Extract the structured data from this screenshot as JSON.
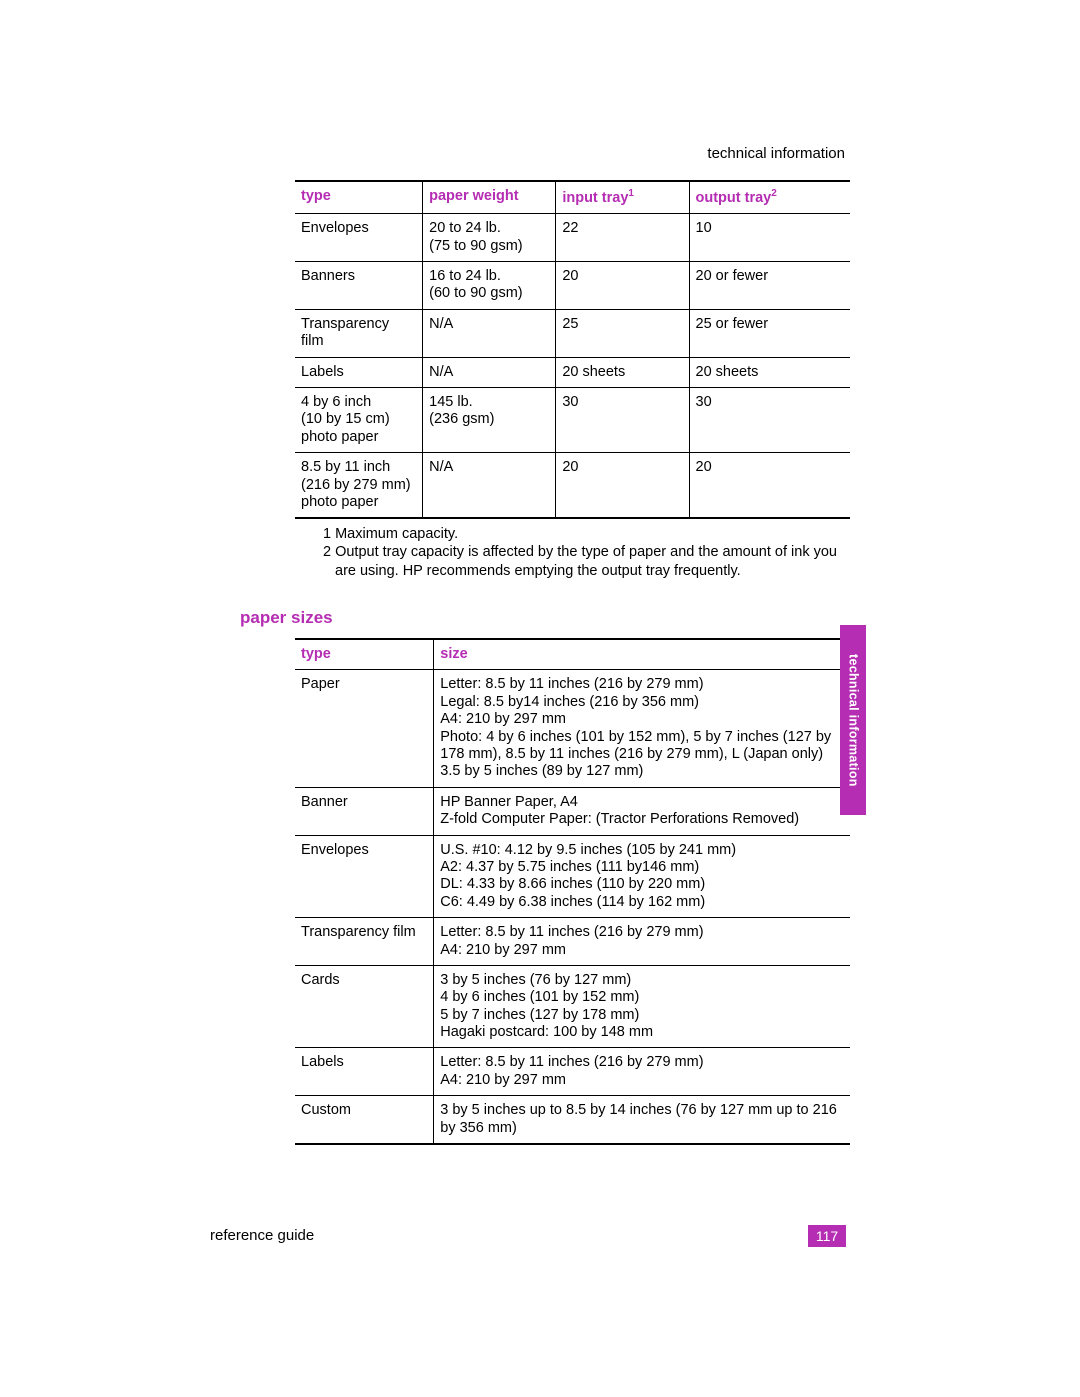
{
  "colors": {
    "accent": "#b52db3",
    "text": "#000000",
    "background": "#ffffff",
    "tab_text": "#ffffff"
  },
  "running_header": "technical information",
  "side_tab": "technical information",
  "footer": {
    "left": "reference guide",
    "page_number": "117"
  },
  "table1": {
    "headers": {
      "c1": "type",
      "c2": "paper weight",
      "c3_base": "input tray",
      "c3_sup": "1",
      "c4_base": "output tray",
      "c4_sup": "2"
    },
    "rows": [
      {
        "c1": [
          "Envelopes"
        ],
        "c2": [
          "20 to 24 lb.",
          "(75 to 90 gsm)"
        ],
        "c3": [
          "22"
        ],
        "c4": [
          "10"
        ]
      },
      {
        "c1": [
          "Banners"
        ],
        "c2": [
          "16 to 24 lb.",
          "(60 to 90 gsm)"
        ],
        "c3": [
          "20"
        ],
        "c4": [
          "20 or fewer"
        ]
      },
      {
        "c1": [
          "Transparency film"
        ],
        "c2": [
          "N/A"
        ],
        "c3": [
          "25"
        ],
        "c4": [
          "25 or fewer"
        ]
      },
      {
        "c1": [
          "Labels"
        ],
        "c2": [
          "N/A"
        ],
        "c3": [
          "20 sheets"
        ],
        "c4": [
          "20 sheets"
        ]
      },
      {
        "c1": [
          "4 by 6 inch",
          "(10 by 15 cm)",
          "photo paper"
        ],
        "c2": [
          "145 lb.",
          "(236 gsm)"
        ],
        "c3": [
          "30"
        ],
        "c4": [
          "30"
        ]
      },
      {
        "c1": [
          "8.5 by 11 inch",
          "(216 by 279 mm)",
          "photo paper"
        ],
        "c2": [
          "N/A"
        ],
        "c3": [
          "20"
        ],
        "c4": [
          "20"
        ]
      }
    ],
    "footnotes": [
      "1 Maximum capacity.",
      "2 Output tray capacity is affected by the type of paper and the amount of ink you are using. HP recommends emptying the output tray frequently."
    ]
  },
  "section_heading": "paper sizes",
  "table2": {
    "headers": {
      "c1": "type",
      "c2": "size"
    },
    "rows": [
      {
        "c1": [
          "Paper"
        ],
        "c2": [
          "Letter: 8.5 by 11 inches (216 by 279 mm)",
          "Legal: 8.5 by14 inches (216 by 356 mm)",
          "A4: 210 by 297 mm",
          "Photo: 4 by 6 inches (101 by 152 mm), 5 by 7 inches (127 by 178 mm), 8.5 by 11 inches (216 by 279 mm), L (Japan only) 3.5 by 5 inches (89 by 127 mm)"
        ]
      },
      {
        "c1": [
          "Banner"
        ],
        "c2": [
          "HP Banner Paper, A4",
          "Z-fold Computer Paper: (Tractor Perforations Removed)"
        ]
      },
      {
        "c1": [
          "Envelopes"
        ],
        "c2": [
          "U.S. #10: 4.12 by 9.5 inches (105 by 241 mm)",
          "A2: 4.37 by 5.75 inches (111 by146 mm)",
          "DL: 4.33 by 8.66 inches (110 by 220 mm)",
          "C6: 4.49 by 6.38 inches (114 by 162 mm)"
        ]
      },
      {
        "c1": [
          "Transparency film"
        ],
        "c2": [
          "Letter: 8.5 by 11 inches (216 by 279 mm)",
          "A4: 210 by 297 mm"
        ]
      },
      {
        "c1": [
          "Cards"
        ],
        "c2": [
          "3 by 5 inches (76 by 127 mm)",
          "4 by 6 inches (101 by 152 mm)",
          "5 by 7 inches (127 by 178 mm)",
          "Hagaki postcard: 100 by 148 mm"
        ]
      },
      {
        "c1": [
          "Labels"
        ],
        "c2": [
          "Letter: 8.5 by 11 inches (216 by 279 mm)",
          "A4: 210 by 297 mm"
        ]
      },
      {
        "c1": [
          "Custom"
        ],
        "c2": [
          "3 by 5 inches up to 8.5 by 14 inches (76 by 127 mm up to 216 by 356 mm)"
        ]
      }
    ]
  }
}
